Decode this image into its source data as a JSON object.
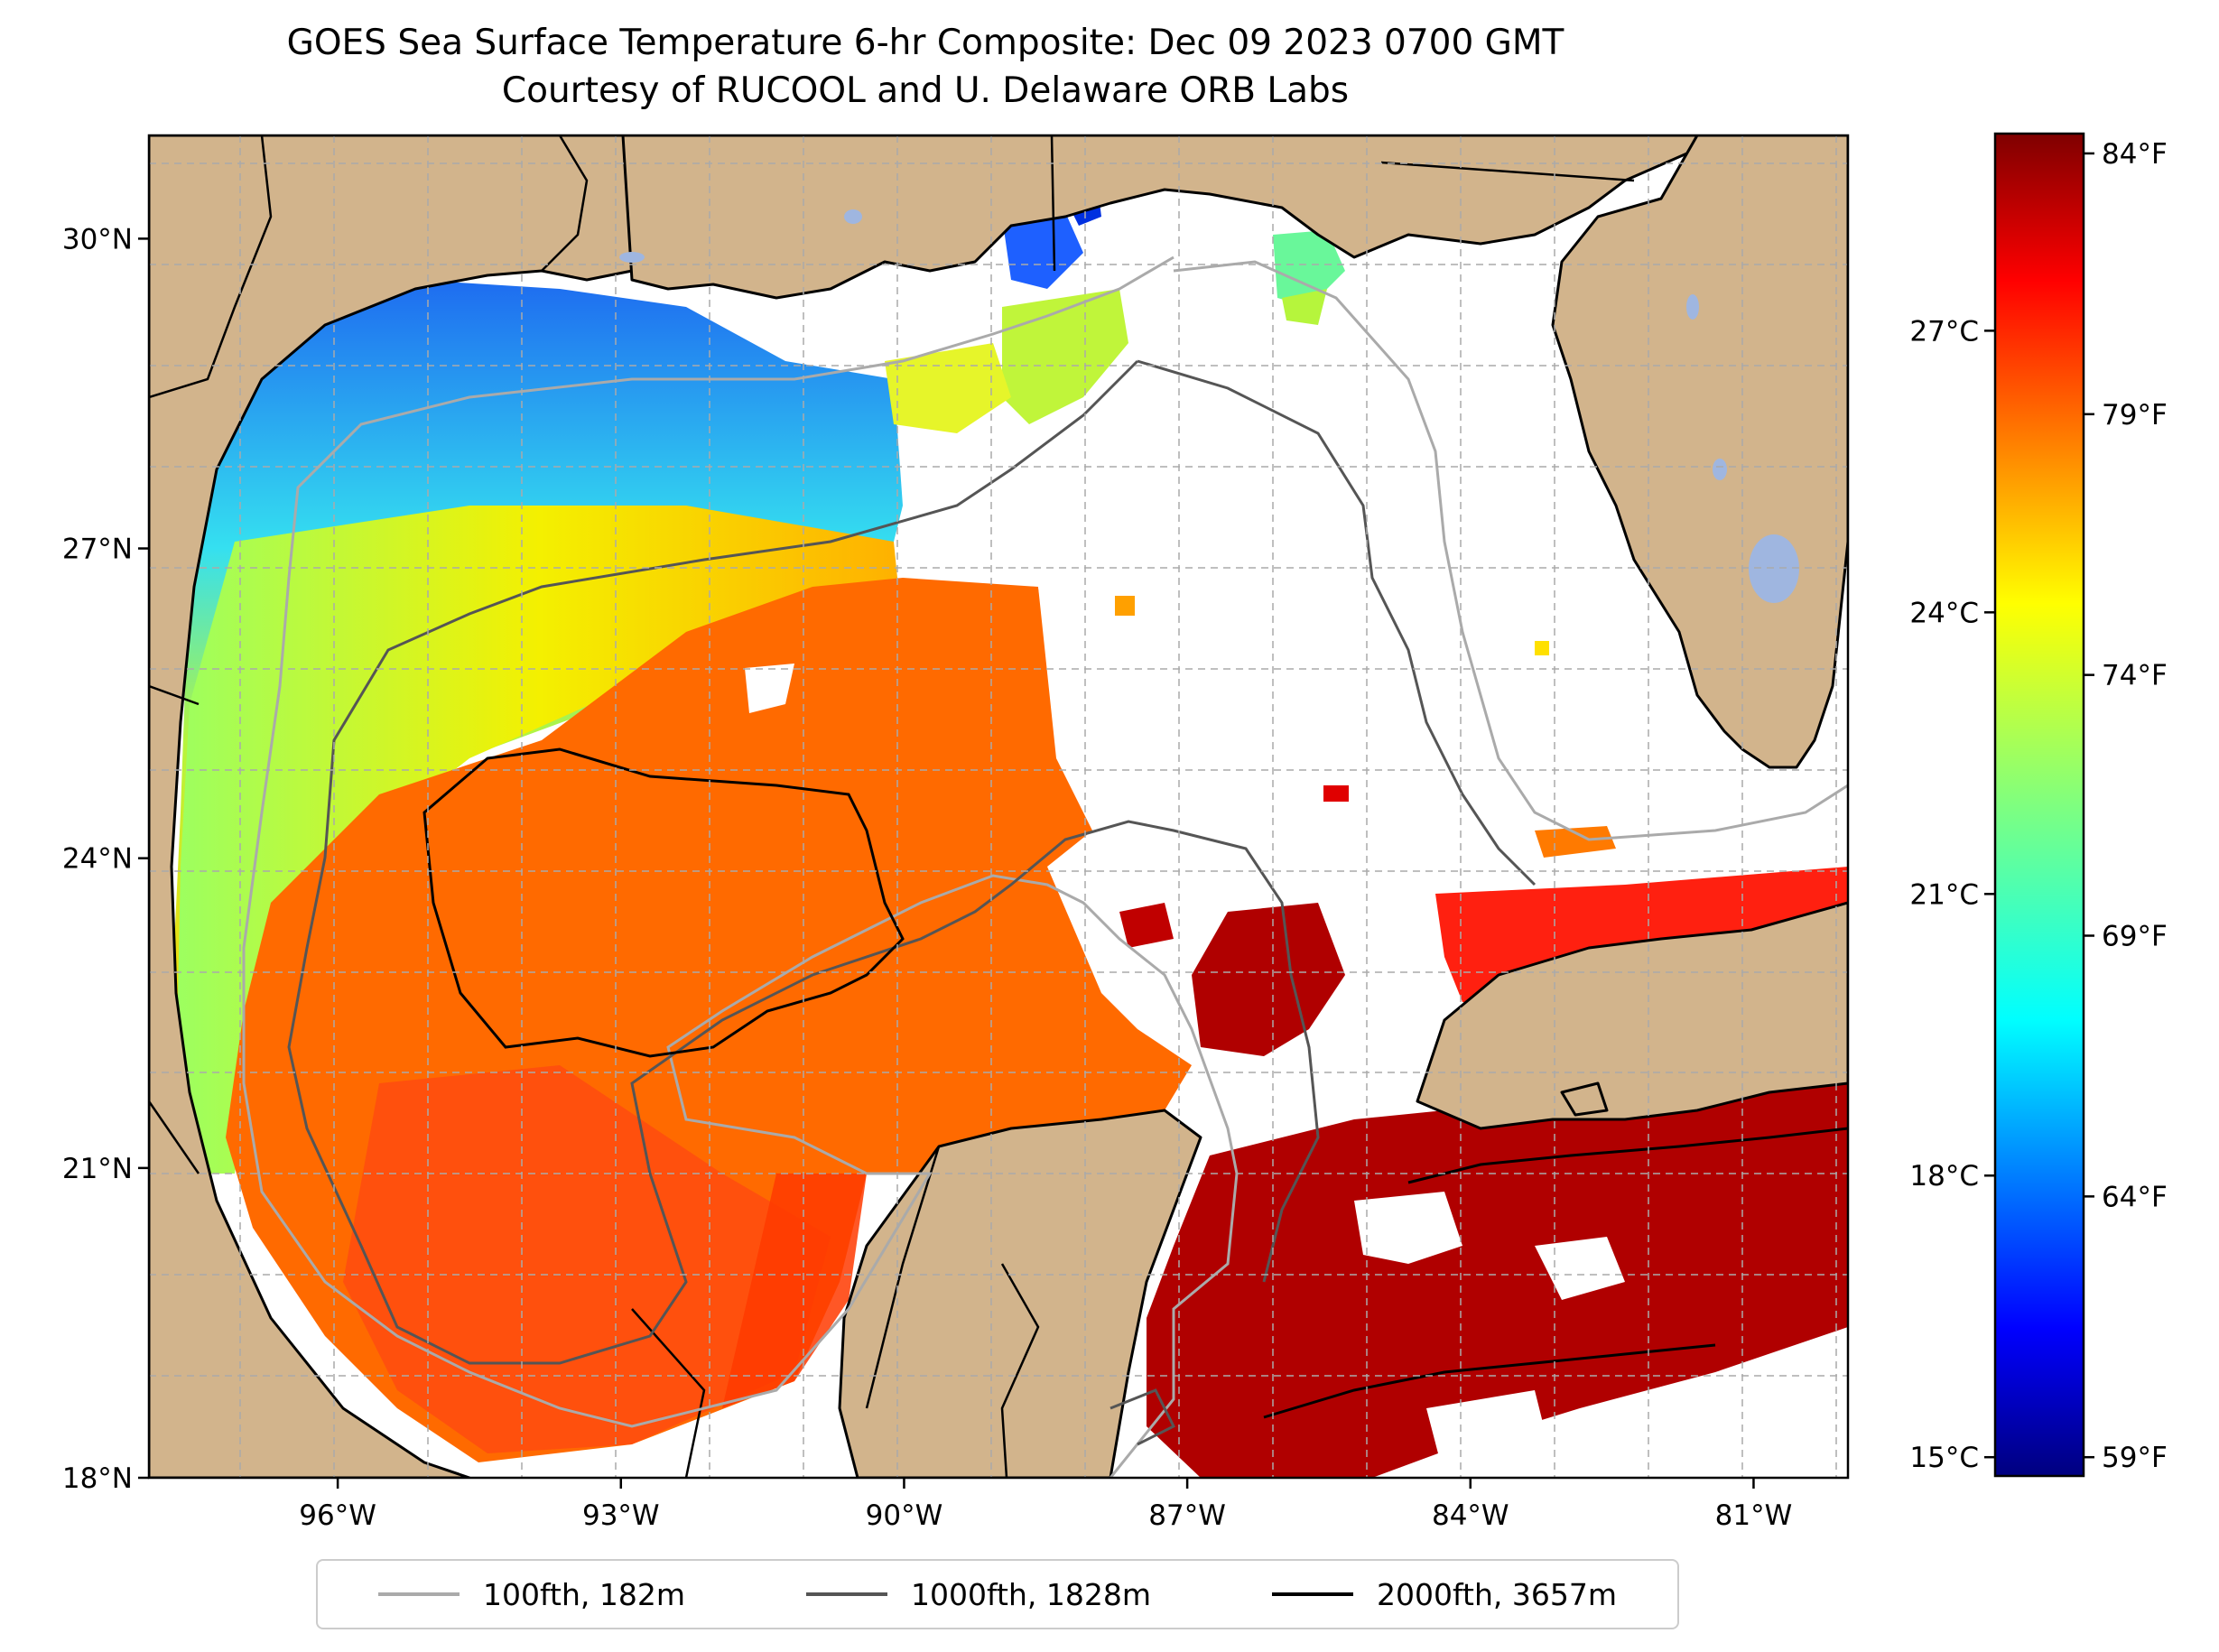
{
  "title_line1": "GOES Sea Surface Temperature 6-hr Composite: Dec 09 2023 0700 GMT",
  "title_line2": "Courtesy of RUCOOL and U. Delaware ORB Labs",
  "map": {
    "lon_range": [
      -98,
      -80
    ],
    "lat_range": [
      18,
      31
    ],
    "lon_ticks": [
      {
        "value": -96,
        "label": "96°W"
      },
      {
        "value": -93,
        "label": "93°W"
      },
      {
        "value": -90,
        "label": "90°W"
      },
      {
        "value": -87,
        "label": "87°W"
      },
      {
        "value": -84,
        "label": "84°W"
      },
      {
        "value": -81,
        "label": "81°W"
      }
    ],
    "lat_ticks": [
      {
        "value": 18,
        "label": "18°N"
      },
      {
        "value": 21,
        "label": "21°N"
      },
      {
        "value": 24,
        "label": "24°N"
      },
      {
        "value": 27,
        "label": "27°N"
      },
      {
        "value": 30,
        "label": "30°N"
      }
    ],
    "gridlines": "dashed",
    "colors": {
      "land": "#d2b48c",
      "water_no_data": "#ffffff",
      "lakes": "#9fb6e0"
    }
  },
  "colorbar": {
    "colormap": "jet",
    "celsius_range": [
      14.8,
      29.1
    ],
    "celsius_labels": [
      "15°C",
      "18°C",
      "21°C",
      "24°C",
      "27°C"
    ],
    "fahrenheit_labels": [
      "59°F",
      "64°F",
      "69°F",
      "74°F",
      "79°F",
      "84°F"
    ],
    "fahrenheit_values": [
      59,
      64,
      69,
      74,
      79,
      84
    ]
  },
  "legend": {
    "placement": "bottom-center",
    "items": [
      {
        "label": "100fth, 182m",
        "color": "#aaaaaa"
      },
      {
        "label": "1000fth, 1828m",
        "color": "#555555"
      },
      {
        "label": "2000fth, 3657m",
        "color": "#000000"
      }
    ]
  }
}
